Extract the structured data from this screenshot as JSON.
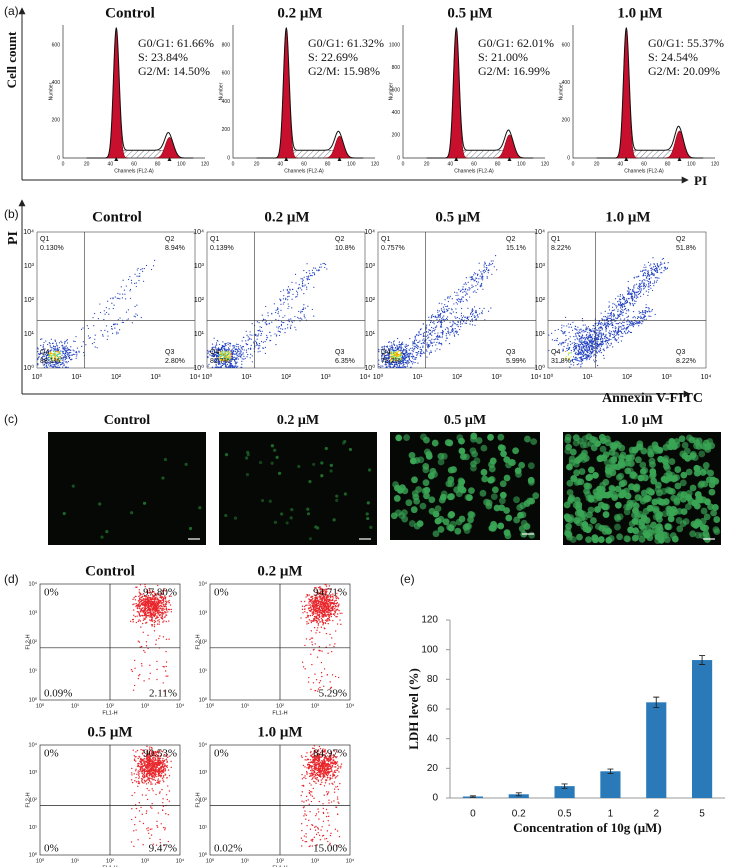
{
  "panel_a": {
    "label": "(a)",
    "y_axis_label": "Cell count",
    "x_axis_label": "PI",
    "plot_x_label": "Channels (FL2-A)",
    "plot_y_label": "Number",
    "x_ticks": [
      "0",
      "20",
      "40",
      "60",
      "80",
      "100",
      "120"
    ],
    "plots": [
      {
        "title": "Control",
        "y_ticks": [
          "0",
          "200",
          "400",
          "600"
        ],
        "stats": [
          "G0/G1: 61.66%",
          "S: 23.84%",
          "G2/M: 14.50%"
        ]
      },
      {
        "title": "0.2 μM",
        "y_ticks": [
          "0",
          "200",
          "400",
          "600",
          "800"
        ],
        "stats": [
          "G0/G1: 61.32%",
          "S: 22.69%",
          "G2/M: 15.98%"
        ]
      },
      {
        "title": "0.5 μM",
        "y_ticks": [
          "0",
          "200",
          "400",
          "600",
          "800",
          "1000"
        ],
        "stats": [
          "G0/G1: 62.01%",
          "S: 21.00%",
          "G2/M: 16.99%"
        ]
      },
      {
        "title": "1.0 μM",
        "y_ticks": [
          "0",
          "200",
          "400",
          "600"
        ],
        "stats": [
          "G0/G1: 55.37%",
          "S: 24.54%",
          "G2/M: 20.09%"
        ]
      }
    ]
  },
  "panel_b": {
    "label": "(b)",
    "y_axis_label": "PI",
    "x_axis_label": "Annexin V-FITC",
    "ticks": [
      "10⁰",
      "10¹",
      "10²",
      "10³",
      "10⁴"
    ],
    "plots": [
      {
        "title": "Control",
        "quadrants": [
          {
            "name": "Q1",
            "value": "0.130%"
          },
          {
            "name": "Q2",
            "value": "8.94%"
          },
          {
            "name": "Q4",
            "value": "88.1%"
          },
          {
            "name": "Q3",
            "value": "2.80%"
          }
        ]
      },
      {
        "title": "0.2 μM",
        "quadrants": [
          {
            "name": "Q1",
            "value": "0.139%"
          },
          {
            "name": "Q2",
            "value": "10.8%"
          },
          {
            "name": "Q4",
            "value": "82.7%"
          },
          {
            "name": "Q3",
            "value": "6.35%"
          }
        ]
      },
      {
        "title": "0.5 μM",
        "quadrants": [
          {
            "name": "Q1",
            "value": "0.757%"
          },
          {
            "name": "Q2",
            "value": "15.1%"
          },
          {
            "name": "Q4",
            "value": "78.2%"
          },
          {
            "name": "Q3",
            "value": "5.99%"
          }
        ]
      },
      {
        "title": "1.0 μM",
        "quadrants": [
          {
            "name": "Q1",
            "value": "8.22%"
          },
          {
            "name": "Q2",
            "value": "51.8%"
          },
          {
            "name": "Q4",
            "value": "31.8%"
          },
          {
            "name": "Q3",
            "value": "8.22%"
          }
        ]
      }
    ]
  },
  "panel_c": {
    "label": "(c)",
    "titles": [
      "Control",
      "0.2 μM",
      "0.5 μM",
      "1.0 μM"
    ]
  },
  "panel_d": {
    "label": "(d)",
    "x_axis_label": "FL1-H",
    "y_axis_label": "FL2-H",
    "ticks": [
      "10⁰",
      "10¹",
      "10²",
      "10³",
      "10⁴"
    ],
    "plots": [
      {
        "title": "Control",
        "quadrants": [
          "0%",
          "97.80%",
          "0.09%",
          "2.11%"
        ]
      },
      {
        "title": "0.2 μM",
        "quadrants": [
          "0%",
          "94.71%",
          null,
          "5.29%"
        ]
      },
      {
        "title": "0.5 μM",
        "quadrants": [
          "0%",
          "90.53%",
          "0%",
          "9.47%"
        ]
      },
      {
        "title": "1.0 μM",
        "quadrants": [
          "0%",
          "84.97%",
          "0.02%",
          "15.00%"
        ]
      }
    ]
  },
  "chart_data": {
    "type": "bar",
    "label": "(e)",
    "x_label": "Concentration of 10g (μM)",
    "y_label": "LDH level (%)",
    "categories": [
      "0",
      "0.2",
      "0.5",
      "1",
      "2",
      "5"
    ],
    "values": [
      1,
      2.5,
      8,
      18,
      64.5,
      93
    ],
    "errors": [
      0.5,
      1,
      1.5,
      1.5,
      3.5,
      3
    ],
    "color": "#2a7ab9",
    "ylim": [
      0,
      120
    ],
    "yticks": [
      0,
      20,
      40,
      60,
      80,
      100,
      120
    ],
    "grid": false
  }
}
